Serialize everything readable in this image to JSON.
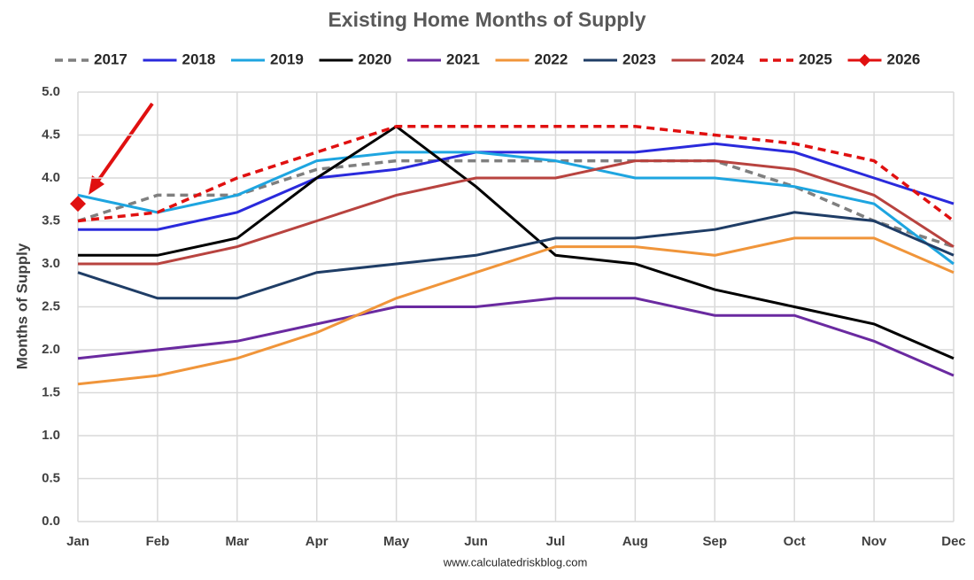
{
  "chart_data": {
    "type": "line",
    "title": "Existing Home Months of Supply",
    "y_label": "Months of Supply",
    "source": "www.calculatedriskblog.com",
    "categories": [
      "Jan",
      "Feb",
      "Mar",
      "Apr",
      "May",
      "Jun",
      "Jul",
      "Aug",
      "Sep",
      "Oct",
      "Nov",
      "Dec"
    ],
    "ylim": [
      0,
      5
    ],
    "yticks": [
      {
        "value": 0,
        "label": "0.0"
      },
      0.5,
      {
        "value": 1,
        "label": "1.0"
      },
      1.5,
      {
        "value": 2,
        "label": "2.0"
      },
      2.5,
      {
        "value": 3,
        "label": "3.0"
      },
      3.5,
      {
        "value": 4,
        "label": "4.0"
      },
      4.5,
      {
        "value": 5,
        "label": "5.0"
      }
    ],
    "grid": true,
    "legend": "top",
    "series": [
      {
        "name": "2017",
        "color": "#7f7f7f",
        "dash": true,
        "values": [
          3.5,
          3.8,
          3.8,
          4.1,
          4.2,
          4.2,
          4.2,
          4.2,
          4.2,
          3.9,
          3.5,
          3.2
        ]
      },
      {
        "name": "2018",
        "color": "#2a2adc",
        "values": [
          3.4,
          3.4,
          3.6,
          4.0,
          4.1,
          4.3,
          4.3,
          4.3,
          4.4,
          4.3,
          4.0,
          3.7
        ]
      },
      {
        "name": "2019",
        "color": "#1ea5e0",
        "values": [
          3.8,
          3.6,
          3.8,
          4.2,
          4.3,
          4.3,
          4.2,
          4.0,
          4.0,
          3.9,
          3.7,
          3.0
        ]
      },
      {
        "name": "2020",
        "color": "#000000",
        "values": [
          3.1,
          3.1,
          3.3,
          4.0,
          4.6,
          3.9,
          3.1,
          3.0,
          2.7,
          2.5,
          2.3,
          1.9
        ]
      },
      {
        "name": "2021",
        "color": "#6a2aa0",
        "values": [
          1.9,
          2.0,
          2.1,
          2.3,
          2.5,
          2.5,
          2.6,
          2.6,
          2.4,
          2.4,
          2.1,
          1.7
        ]
      },
      {
        "name": "2022",
        "color": "#f0953a",
        "values": [
          1.6,
          1.7,
          1.9,
          2.2,
          2.6,
          2.9,
          3.2,
          3.2,
          3.1,
          3.3,
          3.3,
          2.9
        ]
      },
      {
        "name": "2023",
        "color": "#1f3d66",
        "values": [
          2.9,
          2.6,
          2.6,
          2.9,
          3.0,
          3.1,
          3.3,
          3.3,
          3.4,
          3.6,
          3.5,
          3.1
        ]
      },
      {
        "name": "2024",
        "color": "#b8433f",
        "values": [
          3.0,
          3.0,
          3.2,
          3.5,
          3.8,
          4.0,
          4.0,
          4.2,
          4.2,
          4.1,
          3.8,
          3.2
        ]
      },
      {
        "name": "2025",
        "color": "#e01010",
        "dash": true,
        "values": [
          3.5,
          3.6,
          4.0,
          4.3,
          4.6,
          4.6,
          4.6,
          4.6,
          4.5,
          4.4,
          4.2,
          3.5
        ]
      },
      {
        "name": "2026",
        "color": "#e01010",
        "marker": "diamond",
        "values": [
          3.7,
          null,
          null,
          null,
          null,
          null,
          null,
          null,
          null,
          null,
          null,
          null
        ]
      }
    ]
  }
}
